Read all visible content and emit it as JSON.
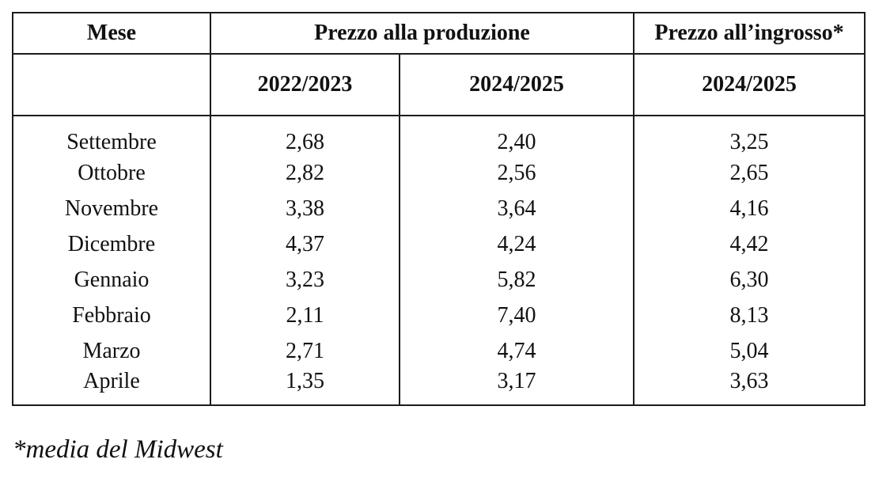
{
  "table": {
    "col_headers": {
      "mese": "Mese",
      "produzione": "Prezzo alla produzione",
      "ingrosso": "Prezzo all’ingrosso*"
    },
    "season_headers": {
      "produzione_col1": "2022/2023",
      "produzione_col2": "2024/2025",
      "ingrosso_col1": "2024/2025"
    },
    "rows": [
      {
        "month": "Settembre",
        "prod_2022_2023": "2,68",
        "prod_2024_2025": "2,40",
        "ingr_2024_2025": "3,25"
      },
      {
        "month": "Ottobre",
        "prod_2022_2023": "2,82",
        "prod_2024_2025": "2,56",
        "ingr_2024_2025": "2,65"
      },
      {
        "month": "Novembre",
        "prod_2022_2023": "3,38",
        "prod_2024_2025": "3,64",
        "ingr_2024_2025": "4,16"
      },
      {
        "month": "Dicembre",
        "prod_2022_2023": "4,37",
        "prod_2024_2025": "4,24",
        "ingr_2024_2025": "4,42"
      },
      {
        "month": "Gennaio",
        "prod_2022_2023": "3,23",
        "prod_2024_2025": "5,82",
        "ingr_2024_2025": "6,30"
      },
      {
        "month": "Febbraio",
        "prod_2022_2023": "2,11",
        "prod_2024_2025": "7,40",
        "ingr_2024_2025": "8,13"
      },
      {
        "month": "Marzo",
        "prod_2022_2023": "2,71",
        "prod_2024_2025": "4,74",
        "ingr_2024_2025": "5,04"
      },
      {
        "month": "Aprile",
        "prod_2022_2023": "1,35",
        "prod_2024_2025": "3,17",
        "ingr_2024_2025": "3,63"
      }
    ]
  },
  "footnote": "*media del Midwest",
  "colors": {
    "text": "#111111",
    "border": "#1c1c1c",
    "background": "#ffffff"
  }
}
